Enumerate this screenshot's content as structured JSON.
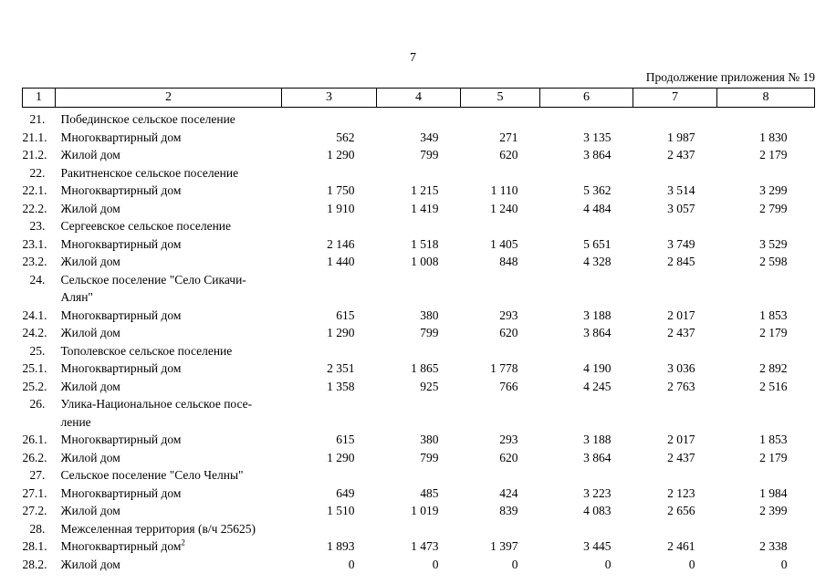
{
  "page": {
    "number": "7",
    "continuation_note": "Продолжение приложения № 19"
  },
  "table": {
    "column_numbers": [
      "1",
      "2",
      "3",
      "4",
      "5",
      "6",
      "7",
      "8"
    ],
    "rows": [
      {
        "type": "section",
        "num": "21.",
        "label": "Побединское сельское поселение"
      },
      {
        "type": "item",
        "num": "21.1.",
        "label": "Многоквартирный дом",
        "values": [
          "562",
          "349",
          "271",
          "3 135",
          "1 987",
          "1 830"
        ]
      },
      {
        "type": "item",
        "num": "21.2.",
        "label": "Жилой дом",
        "values": [
          "1 290",
          "799",
          "620",
          "3 864",
          "2 437",
          "2 179"
        ]
      },
      {
        "type": "section",
        "num": "22.",
        "label": "Ракитненское сельское поселение"
      },
      {
        "type": "item",
        "num": "22.1.",
        "label": "Многоквартирный дом",
        "values": [
          "1 750",
          "1 215",
          "1 110",
          "5 362",
          "3 514",
          "3 299"
        ]
      },
      {
        "type": "item",
        "num": "22.2.",
        "label": "Жилой дом",
        "values": [
          "1 910",
          "1 419",
          "1 240",
          "4 484",
          "3 057",
          "2 799"
        ]
      },
      {
        "type": "section",
        "num": "23.",
        "label": "Сергеевское сельское поселение"
      },
      {
        "type": "item",
        "num": "23.1.",
        "label": "Многоквартирный дом",
        "values": [
          "2 146",
          "1 518",
          "1 405",
          "5 651",
          "3 749",
          "3 529"
        ]
      },
      {
        "type": "item",
        "num": "23.2.",
        "label": "Жилой дом",
        "values": [
          "1 440",
          "1 008",
          "848",
          "4 328",
          "2 845",
          "2 598"
        ]
      },
      {
        "type": "section",
        "num": "24.",
        "label": "Сельское поселение \"Село Сикачи-\nАлян\""
      },
      {
        "type": "item",
        "num": "24.1.",
        "label": "Многоквартирный дом",
        "values": [
          "615",
          "380",
          "293",
          "3 188",
          "2 017",
          "1 853"
        ]
      },
      {
        "type": "item",
        "num": "24.2.",
        "label": "Жилой дом",
        "values": [
          "1 290",
          "799",
          "620",
          "3 864",
          "2 437",
          "2 179"
        ]
      },
      {
        "type": "section",
        "num": "25.",
        "label": "Тополевское сельское поселение"
      },
      {
        "type": "item",
        "num": "25.1.",
        "label": "Многоквартирный дом",
        "values": [
          "2 351",
          "1 865",
          "1 778",
          "4 190",
          "3 036",
          "2 892"
        ]
      },
      {
        "type": "item",
        "num": "25.2.",
        "label": "Жилой дом",
        "values": [
          "1 358",
          "925",
          "766",
          "4 245",
          "2 763",
          "2 516"
        ]
      },
      {
        "type": "section",
        "num": "26.",
        "label": "Улика-Национальное сельское посе-\nление"
      },
      {
        "type": "item",
        "num": "26.1.",
        "label": "Многоквартирный дом",
        "values": [
          "615",
          "380",
          "293",
          "3 188",
          "2 017",
          "1 853"
        ]
      },
      {
        "type": "item",
        "num": "26.2.",
        "label": "Жилой дом",
        "values": [
          "1 290",
          "799",
          "620",
          "3 864",
          "2 437",
          "2 179"
        ]
      },
      {
        "type": "section",
        "num": "27.",
        "label": "Сельское поселение \"Село Челны\""
      },
      {
        "type": "item",
        "num": "27.1.",
        "label": "Многоквартирный дом",
        "values": [
          "649",
          "485",
          "424",
          "3 223",
          "2 123",
          "1 984"
        ]
      },
      {
        "type": "item",
        "num": "27.2.",
        "label": "Жилой дом",
        "values": [
          "1 510",
          "1 019",
          "839",
          "4 083",
          "2 656",
          "2 399"
        ]
      },
      {
        "type": "section",
        "num": "28.",
        "label": "Межселенная территория (в/ч 25625)"
      },
      {
        "type": "item",
        "num": "28.1.",
        "label": "Многоквартирный дом",
        "sup": "2",
        "values": [
          "1 893",
          "1 473",
          "1 397",
          "3 445",
          "2 461",
          "2 338"
        ]
      },
      {
        "type": "item",
        "num": "28.2.",
        "label": "Жилой дом",
        "values": [
          "0",
          "0",
          "0",
          "0",
          "0",
          "0"
        ]
      }
    ]
  }
}
